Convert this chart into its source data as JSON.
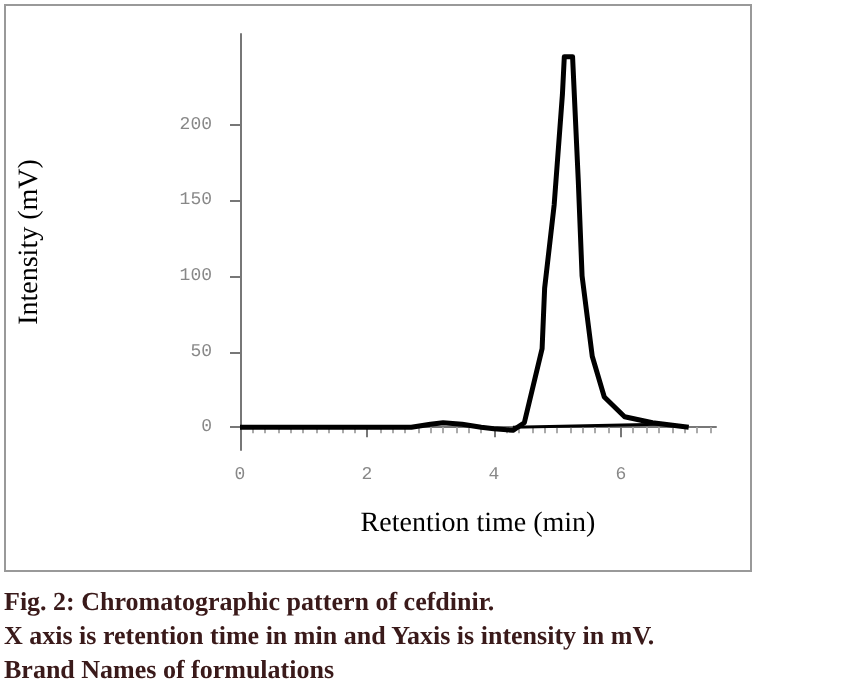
{
  "chart_data": {
    "type": "line",
    "xlabel": "Retention time (min)",
    "ylabel": "Intensity (mV)",
    "annotations": [
      "Fig. 2: Chromatographic pattern of cefdinir.",
      "X axis is retention time in min and  Yaxis is intensity  in mV.",
      "Brand Names of formulations"
    ],
    "series": [
      {
        "color": "#000000",
        "x": [
          0,
          1,
          2,
          2.7,
          3.0,
          3.2,
          3.5,
          3.8,
          4.0,
          4.3,
          4.48,
          4.76,
          4.8,
          4.95,
          5.08,
          5.11,
          5.24,
          5.33,
          5.39,
          5.55,
          5.74,
          6.06,
          6.5,
          7.07
        ],
        "values": [
          0,
          0,
          0,
          0,
          2,
          3,
          2,
          0,
          -1,
          -2,
          3,
          52,
          92,
          147,
          220,
          245,
          245,
          163,
          100,
          47,
          20,
          7,
          3,
          0
        ]
      },
      {
        "color": "#000000",
        "x": [
          4.3,
          6.6
        ],
        "values": [
          0,
          2
        ]
      }
    ],
    "xlim": [
      0,
      7.5
    ],
    "xticks": [
      0,
      2,
      4,
      6
    ],
    "ylim": [
      -15,
      260
    ],
    "yticks": [
      0,
      50,
      100,
      150,
      200
    ],
    "grid": false,
    "marker": "none",
    "line_style": "solid"
  }
}
